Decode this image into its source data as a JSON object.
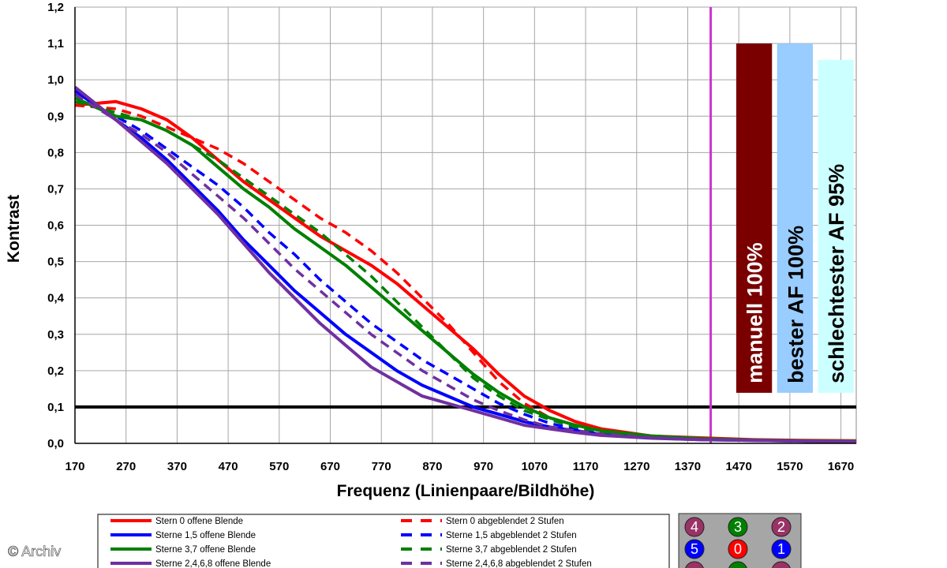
{
  "chart_data": {
    "type": "line",
    "title": "",
    "xlabel": "Frequenz (Linienpaare/Bildhöhe)",
    "ylabel": "Kontrast",
    "xlim": [
      170,
      1700
    ],
    "ylim": [
      0,
      1.2
    ],
    "grid": true,
    "x_ticks": [
      "170",
      "270",
      "370",
      "470",
      "570",
      "670",
      "770",
      "870",
      "970",
      "1070",
      "1170",
      "1270",
      "1370",
      "1470",
      "1570",
      "1670"
    ],
    "y_ticks": [
      "0,0",
      "0,1",
      "0,2",
      "0,3",
      "0,4",
      "0,5",
      "0,6",
      "0,7",
      "0,8",
      "0,9",
      "1,0",
      "1,1",
      "1,2"
    ],
    "threshold_line": {
      "y": 0.1,
      "color": "#000000"
    },
    "vertical_marker": {
      "x": 1415,
      "color": "#cc33cc"
    },
    "bars": [
      {
        "label": "manuell 100%",
        "value": 1.1,
        "x_from": 1465,
        "x_to": 1535,
        "color": "#7a0000",
        "text_color": "#ffffff"
      },
      {
        "label": "bester AF 100%",
        "value": 1.1,
        "x_from": 1545,
        "x_to": 1615,
        "color": "#99ccff",
        "text_color": "#000000"
      },
      {
        "label": "schlechtester AF 95%",
        "value": 1.055,
        "x_from": 1625,
        "x_to": 1695,
        "color": "#ccffff",
        "text_color": "#000000"
      }
    ],
    "series": [
      {
        "name": "Stern 0 offene Blende",
        "color": "#ff0000",
        "dash": false,
        "x": [
          170,
          250,
          300,
          350,
          400,
          450,
          500,
          550,
          600,
          650,
          700,
          750,
          800,
          850,
          900,
          950,
          1000,
          1050,
          1100,
          1150,
          1200,
          1300,
          1400,
          1500,
          1600,
          1700
        ],
        "y": [
          0.93,
          0.94,
          0.92,
          0.89,
          0.84,
          0.78,
          0.72,
          0.67,
          0.62,
          0.57,
          0.53,
          0.49,
          0.44,
          0.38,
          0.32,
          0.26,
          0.19,
          0.13,
          0.09,
          0.06,
          0.04,
          0.02,
          0.015,
          0.01,
          0.008,
          0.007
        ]
      },
      {
        "name": "Stern 0 abgeblendet 2 Stufen",
        "color": "#ff0000",
        "dash": true,
        "x": [
          170,
          250,
          300,
          350,
          400,
          450,
          500,
          550,
          600,
          650,
          700,
          750,
          800,
          850,
          900,
          950,
          1000,
          1050,
          1100,
          1150,
          1200,
          1300,
          1400,
          1500,
          1600,
          1700
        ],
        "y": [
          0.93,
          0.92,
          0.9,
          0.87,
          0.84,
          0.81,
          0.77,
          0.72,
          0.67,
          0.62,
          0.58,
          0.53,
          0.47,
          0.4,
          0.33,
          0.25,
          0.17,
          0.11,
          0.07,
          0.05,
          0.035,
          0.02,
          0.012,
          0.009,
          0.007,
          0.006
        ]
      },
      {
        "name": "Sterne 1,5 offene Blende",
        "color": "#0000ff",
        "dash": false,
        "x": [
          170,
          250,
          300,
          350,
          400,
          450,
          500,
          550,
          600,
          650,
          700,
          750,
          800,
          850,
          900,
          950,
          1000,
          1050,
          1100,
          1150,
          1200,
          1300,
          1400,
          1500,
          1600,
          1700
        ],
        "y": [
          0.97,
          0.89,
          0.84,
          0.78,
          0.71,
          0.64,
          0.56,
          0.49,
          0.42,
          0.36,
          0.3,
          0.25,
          0.2,
          0.16,
          0.13,
          0.1,
          0.08,
          0.06,
          0.045,
          0.035,
          0.025,
          0.015,
          0.01,
          0.008,
          0.006,
          0.005
        ]
      },
      {
        "name": "Sterne 1,5 abgeblendet 2 Stufen",
        "color": "#0000ff",
        "dash": true,
        "x": [
          170,
          250,
          300,
          350,
          400,
          450,
          500,
          550,
          600,
          650,
          700,
          750,
          800,
          850,
          900,
          950,
          1000,
          1050,
          1100,
          1150,
          1200,
          1300,
          1400,
          1500,
          1600,
          1700
        ],
        "y": [
          0.95,
          0.9,
          0.86,
          0.81,
          0.76,
          0.71,
          0.65,
          0.58,
          0.52,
          0.45,
          0.39,
          0.33,
          0.28,
          0.23,
          0.19,
          0.15,
          0.11,
          0.08,
          0.055,
          0.04,
          0.03,
          0.018,
          0.012,
          0.009,
          0.007,
          0.006
        ]
      },
      {
        "name": "Sterne 3,7 offene Blende",
        "color": "#008000",
        "dash": false,
        "x": [
          170,
          250,
          300,
          350,
          400,
          450,
          500,
          550,
          600,
          650,
          700,
          750,
          800,
          850,
          900,
          950,
          1000,
          1050,
          1100,
          1150,
          1200,
          1300,
          1400,
          1500,
          1600,
          1700
        ],
        "y": [
          0.95,
          0.9,
          0.89,
          0.86,
          0.82,
          0.76,
          0.7,
          0.65,
          0.59,
          0.54,
          0.49,
          0.43,
          0.37,
          0.31,
          0.25,
          0.19,
          0.14,
          0.1,
          0.07,
          0.05,
          0.035,
          0.02,
          0.013,
          0.009,
          0.007,
          0.006
        ]
      },
      {
        "name": "Sterne 3,7 abgeblendet 2 Stufen",
        "color": "#008000",
        "dash": true,
        "x": [
          170,
          250,
          300,
          350,
          400,
          450,
          500,
          550,
          600,
          650,
          700,
          750,
          800,
          850,
          900,
          950,
          1000,
          1050,
          1100,
          1150,
          1200,
          1300,
          1400,
          1500,
          1600,
          1700
        ],
        "y": [
          0.94,
          0.91,
          0.89,
          0.86,
          0.82,
          0.78,
          0.73,
          0.68,
          0.63,
          0.58,
          0.52,
          0.46,
          0.39,
          0.32,
          0.25,
          0.18,
          0.13,
          0.09,
          0.065,
          0.045,
          0.032,
          0.018,
          0.012,
          0.009,
          0.007,
          0.006
        ]
      },
      {
        "name": "Sterne 2,4,6,8 offene Blende",
        "color": "#7030a0",
        "dash": false,
        "x": [
          170,
          250,
          300,
          350,
          400,
          450,
          500,
          550,
          600,
          650,
          700,
          750,
          800,
          850,
          900,
          950,
          1000,
          1050,
          1100,
          1150,
          1200,
          1300,
          1400,
          1500,
          1600,
          1700
        ],
        "y": [
          0.98,
          0.89,
          0.83,
          0.77,
          0.7,
          0.63,
          0.55,
          0.47,
          0.4,
          0.33,
          0.27,
          0.21,
          0.17,
          0.13,
          0.11,
          0.09,
          0.07,
          0.05,
          0.04,
          0.03,
          0.022,
          0.014,
          0.01,
          0.008,
          0.006,
          0.005
        ]
      },
      {
        "name": "Sterne 2,4,6,8 abgeblendet 2 Stufen",
        "color": "#7030a0",
        "dash": true,
        "x": [
          170,
          250,
          300,
          350,
          400,
          450,
          500,
          550,
          600,
          650,
          700,
          750,
          800,
          850,
          900,
          950,
          1000,
          1050,
          1100,
          1150,
          1200,
          1300,
          1400,
          1500,
          1600,
          1700
        ],
        "y": [
          0.96,
          0.89,
          0.85,
          0.8,
          0.74,
          0.68,
          0.62,
          0.55,
          0.48,
          0.42,
          0.36,
          0.3,
          0.25,
          0.2,
          0.16,
          0.12,
          0.09,
          0.065,
          0.045,
          0.035,
          0.026,
          0.016,
          0.011,
          0.008,
          0.006,
          0.005
        ]
      }
    ],
    "legend": {
      "placement": "bottom",
      "entries": [
        "Stern 0 offene Blende",
        "Sterne 1,5 offene Blende",
        "Sterne 3,7 offene Blende",
        "Sterne 2,4,6,8 offene Blende",
        "Stern 0 abgeblendet 2 Stufen",
        "Sterne 1,5 abgeblendet 2 Stufen",
        "Sterne 3,7 abgeblendet 2 Stufen",
        "Sterne 2,4,6,8 abgeblendet 2 Stufen"
      ]
    },
    "star_key": [
      {
        "label": "4",
        "color": "#993366"
      },
      {
        "label": "3",
        "color": "#008000"
      },
      {
        "label": "2",
        "color": "#993366"
      },
      {
        "label": "5",
        "color": "#0000ff"
      },
      {
        "label": "0",
        "color": "#ff0000"
      },
      {
        "label": "1",
        "color": "#0000ff"
      },
      {
        "label": "",
        "color": "#993366"
      },
      {
        "label": "",
        "color": "#008000"
      },
      {
        "label": "",
        "color": "#993366"
      }
    ]
  },
  "watermark": "© Archiv"
}
